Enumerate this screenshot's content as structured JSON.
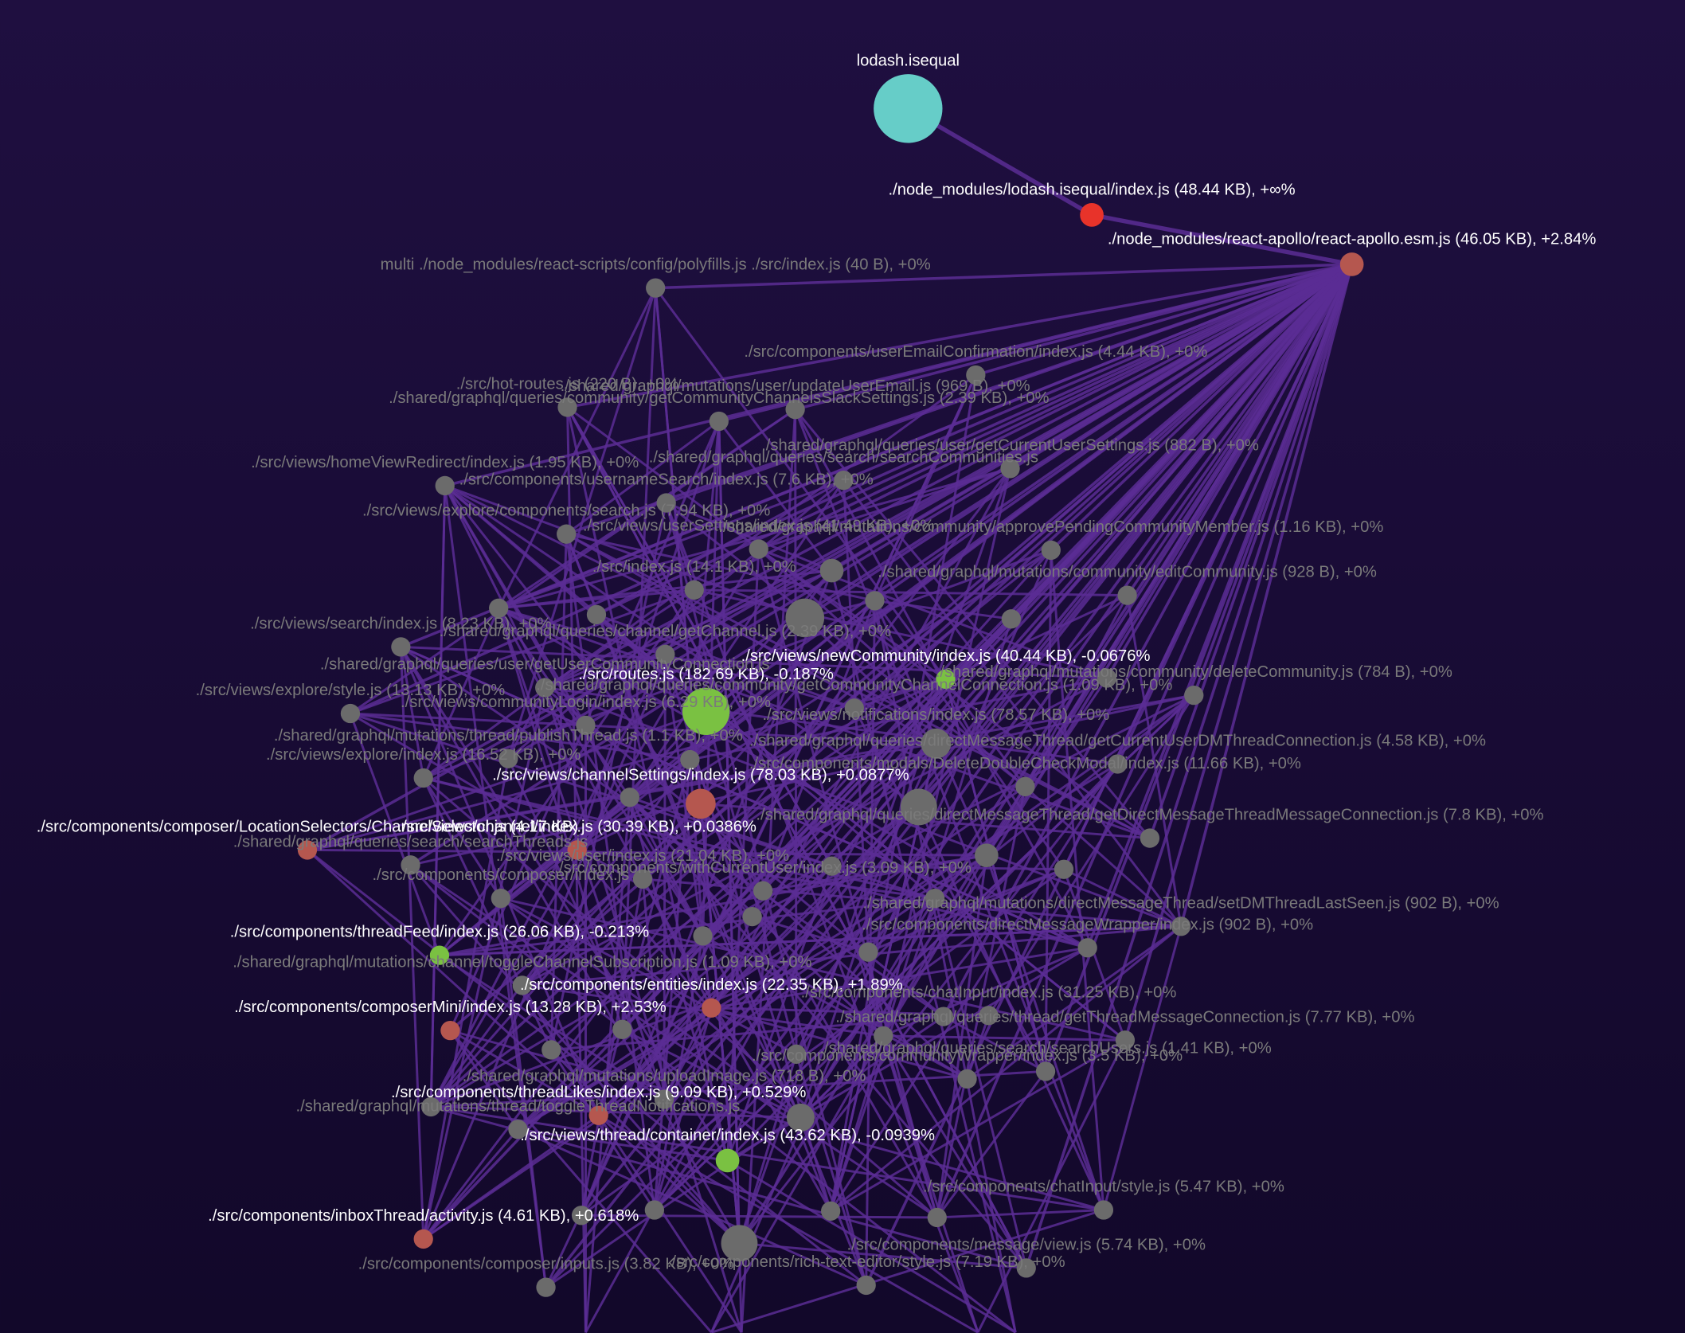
{
  "nodes": [
    {
      "label": "lodash.isequal",
      "color": "#66cdc8"
    },
    {
      "label": "./node_modules/lodash.isequal/index.js (48.44 KB), +∞%",
      "color": "#e8332a"
    },
    {
      "label": "./node_modules/react-apollo/react-apollo.esm.js (46.05 KB), +2.84%",
      "color": "#b5574f"
    },
    {
      "label": "multi ./node_modules/react-scripts/config/polyfills.js ./src/index.js (40 B), +0%",
      "color": "#6b6b6b"
    },
    {
      "label": "./src/components/userEmailConfirmation/index.js (4.44 KB), +0%",
      "color": "#6b6b6b"
    },
    {
      "label": "./src/hot-routes.js (220 B), +0%",
      "color": "#6b6b6b"
    },
    {
      "label": "./shared/graphql/mutations/user/updateUserEmail.js (969 B), +0%",
      "color": "#6b6b6b"
    },
    {
      "label": "./shared/graphql/queries/community/getCommunityChannelsSlackSettings.js (2.39 KB), +0%",
      "color": "#6b6b6b"
    },
    {
      "label": "./shared/graphql/queries/user/getCurrentUserSettings.js (882 B), +0%",
      "color": "#6b6b6b"
    },
    {
      "label": "./src/views/homeViewRedirect/index.js (1.95 KB), +0%",
      "color": "#6b6b6b"
    },
    {
      "label": "./src/components/usernameSearch/index.js (7.6 KB), +0%",
      "color": "#6b6b6b"
    },
    {
      "label": "./shared/graphql/queries/search/searchCommunities.js",
      "color": "#6b6b6b"
    },
    {
      "label": "./src/views/explore/components/search.js (7.94 KB), +0%",
      "color": "#6b6b6b"
    },
    {
      "label": "./src/views/userSettings/index.js (41.49 KB), +0%",
      "color": "#6b6b6b"
    },
    {
      "label": "./shared/graphql/mutations/community/approvePendingCommunityMember.js (1.16 KB), +0%",
      "color": "#6b6b6b"
    },
    {
      "label": "./src/index.js (14.1 KB), +0%",
      "color": "#6b6b6b"
    },
    {
      "label": "./shared/graphql/mutations/community/editCommunity.js (928 B), +0%",
      "color": "#6b6b6b"
    },
    {
      "label": "./shared/graphql/queries/channel/getChannel.js (2.39 KB), +0%",
      "color": "#6b6b6b"
    },
    {
      "label": "./src/views/search/index.js (8.23 KB), +0%",
      "color": "#6b6b6b"
    },
    {
      "label": "./src/views/newCommunity/index.js (40.44 KB), -0.0676%",
      "color": "#7ac142"
    },
    {
      "label": "./shared/graphql/mutations/community/deleteCommunity.js (784 B), +0%",
      "color": "#6b6b6b"
    },
    {
      "label": "./src/routes.js (182.69 KB), -0.187%",
      "color": "#7ac142"
    },
    {
      "label": "./shared/graphql/queries/user/getUserCommunityConnection.js",
      "color": "#6b6b6b"
    },
    {
      "label": "./src/views/explore/style.js (13.13 KB), +0%",
      "color": "#6b6b6b"
    },
    {
      "label": "./shared/graphql/queries/community/getCommunityChannelConnection.js (1.09 KB), +0%",
      "color": "#6b6b6b"
    },
    {
      "label": "./src/views/notifications/index.js (78.57 KB), +0%",
      "color": "#6b6b6b"
    },
    {
      "label": "./src/views/communityLogin/index.js (6.29 KB), +0%",
      "color": "#6b6b6b"
    },
    {
      "label": "./shared/graphql/mutations/thread/publishThread.js (1.1 KB), +0%",
      "color": "#6b6b6b"
    },
    {
      "label": "./shared/graphql/queries/directMessageThread/getCurrentUserDMThreadConnection.js (4.58 KB), +0%",
      "color": "#6b6b6b"
    },
    {
      "label": "./src/views/channelSettings/index.js (78.03 KB), +0.0877%",
      "color": "#b5574f"
    },
    {
      "label": "./src/components/modals/DeleteDoubleCheckModal/index.js (11.66 KB), +0%",
      "color": "#6b6b6b"
    },
    {
      "label": "./src/views/explore/index.js (16.52 KB), +0%",
      "color": "#6b6b6b"
    },
    {
      "label": "./src/components/composer/LocationSelectors/ChannelSelector.js (4.17 KB)",
      "color": "#b5574f"
    },
    {
      "label": "./src/views/channel/index.js (30.39 KB), +0.0386%",
      "color": "#b5574f"
    },
    {
      "label": "./shared/graphql/queries/directMessageThread/getDirectMessageThreadMessageConnection.js (7.8 KB), +0%",
      "color": "#6b6b6b"
    },
    {
      "label": "./shared/graphql/queries/search/searchThreads.js",
      "color": "#6b6b6b"
    },
    {
      "label": "./src/views/user/index.js (21.04 KB), +0%",
      "color": "#6b6b6b"
    },
    {
      "label": "./src/components/threadFeed/index.js (26.06 KB), -0.213%",
      "color": "#7ac142"
    },
    {
      "label": "./shared/graphql/mutations/directMessageThread/setDMThreadLastSeen.js (902 B), +0%",
      "color": "#6b6b6b"
    },
    {
      "label": "./src/components/composer/index.js",
      "color": "#6b6b6b"
    },
    {
      "label": "./shared/graphql/mutations/channel/toggleChannelSubscription.js (1.09 KB), +0%",
      "color": "#6b6b6b"
    },
    {
      "label": "./src/components/entities/index.js (22.35 KB), +1.89%",
      "color": "#b5574f"
    },
    {
      "label": "./src/components/composerMini/index.js (13.28 KB), +2.53%",
      "color": "#b5574f"
    },
    {
      "label": "./src/components/threadLikes/index.js (9.09 KB), +0.529%",
      "color": "#b5574f"
    },
    {
      "label": "./shared/graphql/mutations/thread/toggleThreadNotifications.js",
      "color": "#6b6b6b"
    },
    {
      "label": "./src/views/thread/container/index.js (43.62 KB), -0.0939%",
      "color": "#7ac142"
    },
    {
      "label": "./src/components/inboxThread/activity.js (4.61 KB), +0.618%",
      "color": "#b5574f"
    },
    {
      "label": "./src/components/composer/inputs.js (3.82 KB), +0%",
      "color": "#6b6b6b"
    },
    {
      "label": "./src/components/message/view.js (5.74 KB), +0%",
      "color": "#6b6b6b"
    },
    {
      "label": "./src/components/chatInput/style.js (5.47 KB), +0%",
      "color": "#6b6b6b"
    },
    {
      "label": "./src/components/rich-text-editor/style.js (7.19 KB), +0%",
      "color": "#6b6b6b"
    },
    {
      "label": "./src/components/withCurrentUser/index.js (3.09 KB), +0%",
      "color": "#6b6b6b"
    },
    {
      "label": "./shared/graphql/queries/search/searchUsers.js (1.41 KB), +0%",
      "color": "#6b6b6b"
    },
    {
      "label": "./src/components/communityWrapper/index.js (3.5 KB), +0%",
      "color": "#6b6b6b"
    },
    {
      "label": "./shared/graphql/mutations/uploadImage.js (718 B), +0%",
      "color": "#6b6b6b"
    },
    {
      "label": "./shared/graphql/queries/thread/getThreadMessageConnection.js (7.77 KB), +0%",
      "color": "#6b6b6b"
    },
    {
      "label": "./src/components/directMessageWrapper/index.js (902 B), +0%",
      "color": "#6b6b6b"
    },
    {
      "label": "./src/components/chatInput/index.js (31.25 KB), +0%",
      "color": "#6b6b6b"
    }
  ]
}
